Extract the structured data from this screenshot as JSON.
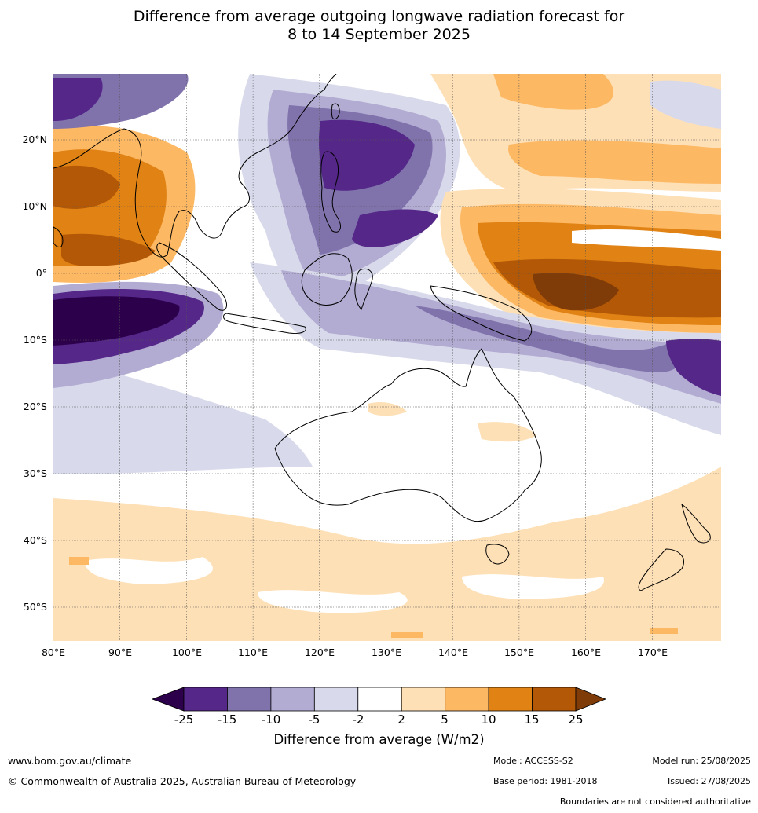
{
  "title_line1": "Difference from average outgoing longwave radiation forecast for",
  "title_line2": "8 to 14 September 2025",
  "lat_labels": [
    "20°N",
    "10°N",
    "0°",
    "10°S",
    "20°S",
    "30°S",
    "40°S",
    "50°S"
  ],
  "lon_labels": [
    "80°E",
    "90°E",
    "100°E",
    "110°E",
    "120°E",
    "130°E",
    "140°E",
    "150°E",
    "160°E",
    "170°E"
  ],
  "colorbar": {
    "ticks": [
      "-25",
      "-15",
      "-10",
      "-5",
      "-2",
      "2",
      "5",
      "10",
      "15",
      "25"
    ],
    "colors": [
      "#2d004b",
      "#542788",
      "#8073ac",
      "#b2abd2",
      "#d8daeb",
      "#ffffff",
      "#fee0b6",
      "#fdb863",
      "#e08214",
      "#b35806",
      "#7f3b08"
    ],
    "label": "Difference from average (W/m2)"
  },
  "footer": {
    "website": "www.bom.gov.au/climate",
    "copyright": "© Commonwealth of Australia 2025, Australian Bureau of Meteorology",
    "model": "Model: ACCESS-S2",
    "base_period": "Base period: 1981-2018",
    "model_run": "Model run: 25/08/2025",
    "issued": "Issued: 27/08/2025",
    "disclaimer": "Boundaries are not considered authoritative"
  }
}
